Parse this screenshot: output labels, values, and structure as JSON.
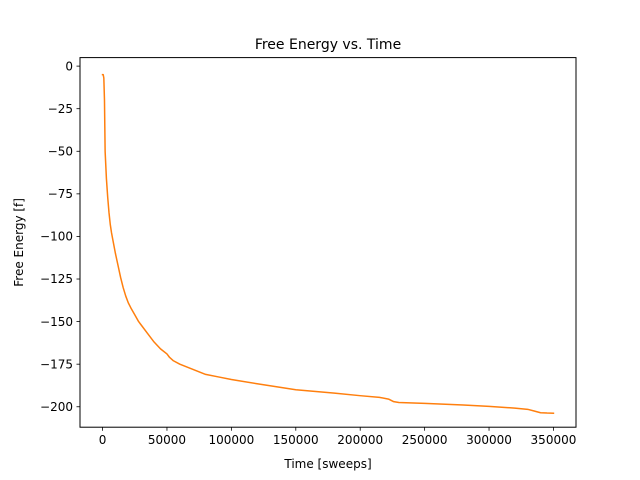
{
  "chart_data": {
    "type": "line",
    "title": "Free Energy vs. Time",
    "xlabel": "Time [sweeps]",
    "ylabel": "Free Energy [f]",
    "xlim": [
      -17500,
      367500
    ],
    "ylim": [
      -212,
      5
    ],
    "xticks": [
      0,
      50000,
      100000,
      150000,
      200000,
      250000,
      300000,
      350000
    ],
    "yticks": [
      0,
      -25,
      -50,
      -75,
      -100,
      -125,
      -150,
      -175,
      -200
    ],
    "grid": false,
    "series": [
      {
        "color": "#ff7f0e",
        "x": [
          0,
          500,
          1000,
          1500,
          2000,
          3000,
          4000,
          5000,
          6000,
          7000,
          8000,
          10000,
          12000,
          14000,
          16000,
          18000,
          20000,
          22000,
          25000,
          28000,
          30000,
          35000,
          40000,
          45000,
          50000,
          52000,
          55000,
          60000,
          70000,
          80000,
          90000,
          100000,
          120000,
          150000,
          180000,
          200000,
          215000,
          222000,
          226000,
          230000,
          250000,
          280000,
          300000,
          320000,
          330000,
          335000,
          340000,
          345000,
          350000
        ],
        "y": [
          -5,
          -5,
          -7,
          -20,
          -50,
          -66,
          -77,
          -86,
          -93,
          -98,
          -102,
          -110,
          -117,
          -124,
          -130,
          -135,
          -139,
          -142,
          -146,
          -150,
          -152,
          -157,
          -162,
          -166,
          -169,
          -171,
          -173,
          -175,
          -178,
          -181,
          -182.5,
          -184,
          -186.5,
          -190,
          -192,
          -193.5,
          -194.5,
          -195.5,
          -197,
          -197.5,
          -198,
          -199,
          -199.8,
          -200.8,
          -201.5,
          -202.5,
          -203.5,
          -203.7,
          -203.8
        ]
      }
    ]
  }
}
